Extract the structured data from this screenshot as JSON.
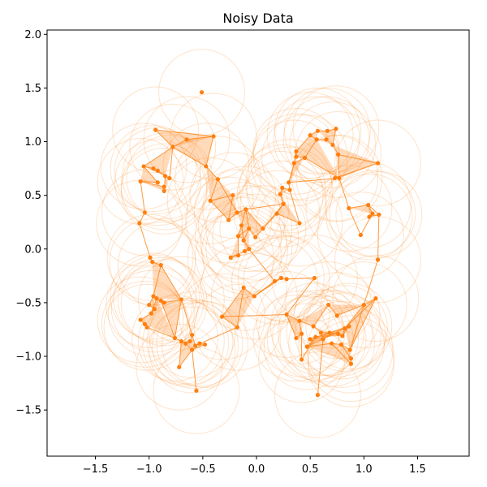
{
  "chart_data": {
    "type": "scatter",
    "title": "Noisy Data",
    "xlabel": "",
    "ylabel": "",
    "xlim": [
      -1.95,
      1.98
    ],
    "ylim": [
      -1.93,
      2.04
    ],
    "xticks": [
      -1.5,
      -1.0,
      -0.5,
      0.0,
      0.5,
      1.0,
      1.5
    ],
    "xtick_labels": [
      "−1.5",
      "−1.0",
      "−0.5",
      "0.0",
      "0.5",
      "1.0",
      "1.5"
    ],
    "yticks": [
      -1.5,
      -1.0,
      -0.5,
      0.0,
      0.5,
      1.0,
      1.5,
      2.0
    ],
    "ytick_labels": [
      "−1.5",
      "−1.0",
      "−0.5",
      "0.0",
      "0.5",
      "1.0",
      "1.5",
      "2.0"
    ],
    "grid": false,
    "point_color": "#ff7f0e",
    "circle_radius": 0.4,
    "points": [
      [
        -0.51,
        1.46
      ],
      [
        -0.94,
        1.11
      ],
      [
        -0.4,
        1.05
      ],
      [
        -0.65,
        1.02
      ],
      [
        -0.78,
        0.95
      ],
      [
        -1.05,
        0.77
      ],
      [
        -0.96,
        0.75
      ],
      [
        -0.92,
        0.73
      ],
      [
        -0.85,
        0.68
      ],
      [
        -0.81,
        0.66
      ],
      [
        -0.92,
        0.62
      ],
      [
        -1.08,
        0.63
      ],
      [
        -0.86,
        0.58
      ],
      [
        -0.86,
        0.54
      ],
      [
        -1.04,
        0.34
      ],
      [
        -1.09,
        0.24
      ],
      [
        -0.47,
        0.77
      ],
      [
        -0.36,
        0.65
      ],
      [
        -0.43,
        0.45
      ],
      [
        -0.22,
        0.5
      ],
      [
        -0.26,
        0.27
      ],
      [
        -0.18,
        0.34
      ],
      [
        -0.1,
        0.37
      ],
      [
        -0.14,
        0.22
      ],
      [
        -0.17,
        0.12
      ],
      [
        -0.07,
        0.19
      ],
      [
        -0.12,
        0.08
      ],
      [
        -0.07,
        0.0
      ],
      [
        -0.11,
        -0.02
      ],
      [
        -0.01,
        0.11
      ],
      [
        0.06,
        0.19
      ],
      [
        -0.24,
        -0.08
      ],
      [
        -0.17,
        -0.06
      ],
      [
        0.57,
        1.1
      ],
      [
        0.66,
        1.1
      ],
      [
        0.74,
        1.12
      ],
      [
        0.5,
        1.06
      ],
      [
        0.56,
        1.02
      ],
      [
        0.65,
        1.02
      ],
      [
        0.71,
        0.97
      ],
      [
        0.76,
        0.88
      ],
      [
        0.37,
        0.91
      ],
      [
        0.37,
        0.86
      ],
      [
        0.45,
        0.85
      ],
      [
        0.35,
        0.8
      ],
      [
        1.13,
        0.8
      ],
      [
        0.73,
        0.66
      ],
      [
        0.77,
        0.66
      ],
      [
        0.3,
        0.62
      ],
      [
        0.31,
        0.55
      ],
      [
        0.24,
        0.57
      ],
      [
        0.22,
        0.51
      ],
      [
        0.25,
        0.42
      ],
      [
        0.19,
        0.33
      ],
      [
        0.4,
        0.24
      ],
      [
        0.86,
        0.38
      ],
      [
        1.04,
        0.41
      ],
      [
        1.08,
        0.33
      ],
      [
        1.05,
        0.3
      ],
      [
        1.14,
        0.32
      ],
      [
        0.97,
        0.13
      ],
      [
        1.13,
        -0.1
      ],
      [
        -0.99,
        -0.08
      ],
      [
        -0.97,
        -0.12
      ],
      [
        -0.89,
        -0.15
      ],
      [
        -0.96,
        -0.44
      ],
      [
        -0.93,
        -0.46
      ],
      [
        -0.89,
        -0.48
      ],
      [
        -0.86,
        -0.5
      ],
      [
        -0.7,
        -0.47
      ],
      [
        -1.0,
        -0.52
      ],
      [
        -0.95,
        -0.56
      ],
      [
        -0.98,
        -0.6
      ],
      [
        -1.08,
        -0.66
      ],
      [
        -1.04,
        -0.7
      ],
      [
        -1.02,
        -0.73
      ],
      [
        -0.76,
        -0.83
      ],
      [
        -0.7,
        -0.86
      ],
      [
        -0.66,
        -0.88
      ],
      [
        -0.62,
        -0.86
      ],
      [
        -0.6,
        -0.8
      ],
      [
        -0.57,
        -0.9
      ],
      [
        -0.53,
        -0.88
      ],
      [
        -0.48,
        -0.89
      ],
      [
        -0.6,
        -0.94
      ],
      [
        -0.72,
        -1.1
      ],
      [
        -0.56,
        -1.32
      ],
      [
        0.23,
        -0.27
      ],
      [
        0.28,
        -0.28
      ],
      [
        0.54,
        -0.27
      ],
      [
        0.17,
        -0.3
      ],
      [
        -0.02,
        -0.44
      ],
      [
        -0.12,
        -0.36
      ],
      [
        -0.18,
        -0.73
      ],
      [
        -0.32,
        -0.63
      ],
      [
        0.28,
        -0.61
      ],
      [
        0.4,
        -0.67
      ],
      [
        0.42,
        -0.79
      ],
      [
        0.37,
        -0.83
      ],
      [
        0.53,
        -0.72
      ],
      [
        0.67,
        -0.52
      ],
      [
        0.75,
        -0.62
      ],
      [
        1.0,
        -0.52
      ],
      [
        1.11,
        -0.46
      ],
      [
        0.6,
        -0.78
      ],
      [
        0.68,
        -0.78
      ],
      [
        0.76,
        -0.79
      ],
      [
        0.8,
        -0.81
      ],
      [
        0.82,
        -0.74
      ],
      [
        0.86,
        -0.72
      ],
      [
        0.5,
        -0.84
      ],
      [
        0.55,
        -0.82
      ],
      [
        0.62,
        -0.84
      ],
      [
        0.47,
        -0.91
      ],
      [
        0.7,
        -0.88
      ],
      [
        0.79,
        -0.89
      ],
      [
        0.87,
        -0.94
      ],
      [
        0.88,
        -1.02
      ],
      [
        0.88,
        -1.07
      ],
      [
        0.42,
        -1.03
      ],
      [
        0.57,
        -1.36
      ]
    ],
    "edges": [
      [
        1,
        2
      ],
      [
        1,
        4
      ],
      [
        2,
        3
      ],
      [
        3,
        4
      ],
      [
        4,
        5
      ],
      [
        5,
        6
      ],
      [
        6,
        7
      ],
      [
        7,
        8
      ],
      [
        8,
        9
      ],
      [
        9,
        4
      ],
      [
        5,
        10
      ],
      [
        10,
        11
      ],
      [
        11,
        12
      ],
      [
        12,
        13
      ],
      [
        13,
        8
      ],
      [
        11,
        14
      ],
      [
        14,
        15
      ],
      [
        4,
        16
      ],
      [
        2,
        16
      ],
      [
        16,
        17
      ],
      [
        17,
        18
      ],
      [
        18,
        19
      ],
      [
        19,
        20
      ],
      [
        20,
        21
      ],
      [
        21,
        22
      ],
      [
        22,
        23
      ],
      [
        23,
        24
      ],
      [
        24,
        25
      ],
      [
        25,
        26
      ],
      [
        26,
        27
      ],
      [
        27,
        28
      ],
      [
        28,
        31
      ],
      [
        31,
        32
      ],
      [
        32,
        24
      ],
      [
        25,
        29
      ],
      [
        29,
        30
      ],
      [
        30,
        22
      ],
      [
        21,
        17
      ],
      [
        18,
        20
      ],
      [
        23,
        26
      ],
      [
        22,
        25
      ],
      [
        33,
        34
      ],
      [
        34,
        35
      ],
      [
        33,
        36
      ],
      [
        36,
        37
      ],
      [
        37,
        38
      ],
      [
        38,
        39
      ],
      [
        39,
        40
      ],
      [
        35,
        39
      ],
      [
        36,
        41
      ],
      [
        41,
        42
      ],
      [
        42,
        43
      ],
      [
        43,
        37
      ],
      [
        41,
        44
      ],
      [
        44,
        48
      ],
      [
        40,
        45
      ],
      [
        45,
        46
      ],
      [
        46,
        47
      ],
      [
        47,
        40
      ],
      [
        43,
        47
      ],
      [
        48,
        49
      ],
      [
        49,
        50
      ],
      [
        50,
        51
      ],
      [
        51,
        52
      ],
      [
        52,
        53
      ],
      [
        53,
        54
      ],
      [
        54,
        49
      ],
      [
        30,
        53
      ],
      [
        30,
        52
      ],
      [
        52,
        22
      ],
      [
        48,
        47
      ],
      [
        44,
        43
      ],
      [
        47,
        55
      ],
      [
        55,
        56
      ],
      [
        56,
        57
      ],
      [
        57,
        58
      ],
      [
        58,
        59
      ],
      [
        59,
        56
      ],
      [
        55,
        60
      ],
      [
        60,
        57
      ],
      [
        59,
        61
      ],
      [
        61,
        116
      ],
      [
        15,
        62
      ],
      [
        62,
        63
      ],
      [
        63,
        64
      ],
      [
        64,
        65
      ],
      [
        65,
        66
      ],
      [
        66,
        67
      ],
      [
        67,
        68
      ],
      [
        68,
        69
      ],
      [
        64,
        69
      ],
      [
        65,
        70
      ],
      [
        70,
        71
      ],
      [
        71,
        72
      ],
      [
        72,
        73
      ],
      [
        73,
        74
      ],
      [
        74,
        75
      ],
      [
        75,
        76
      ],
      [
        76,
        69
      ],
      [
        67,
        76
      ],
      [
        66,
        72
      ],
      [
        76,
        77
      ],
      [
        77,
        78
      ],
      [
        78,
        79
      ],
      [
        79,
        80
      ],
      [
        80,
        81
      ],
      [
        81,
        82
      ],
      [
        82,
        83
      ],
      [
        83,
        84
      ],
      [
        84,
        78
      ],
      [
        77,
        85
      ],
      [
        85,
        84
      ],
      [
        84,
        86
      ],
      [
        80,
        69
      ],
      [
        81,
        93
      ],
      [
        93,
        92
      ],
      [
        92,
        91
      ],
      [
        91,
        90
      ],
      [
        90,
        27
      ],
      [
        92,
        94
      ],
      [
        93,
        94
      ],
      [
        91,
        87
      ],
      [
        87,
        88
      ],
      [
        88,
        89
      ],
      [
        87,
        90
      ],
      [
        94,
        95
      ],
      [
        95,
        96
      ],
      [
        96,
        97
      ],
      [
        97,
        98
      ],
      [
        98,
        95
      ],
      [
        96,
        99
      ],
      [
        99,
        100
      ],
      [
        100,
        101
      ],
      [
        101,
        102
      ],
      [
        102,
        103
      ],
      [
        89,
        95
      ],
      [
        99,
        104
      ],
      [
        104,
        105
      ],
      [
        105,
        106
      ],
      [
        106,
        107
      ],
      [
        107,
        108
      ],
      [
        108,
        102
      ],
      [
        107,
        109
      ],
      [
        109,
        110
      ],
      [
        110,
        111
      ],
      [
        111,
        112
      ],
      [
        112,
        104
      ],
      [
        111,
        113
      ],
      [
        113,
        114
      ],
      [
        114,
        115
      ],
      [
        115,
        116
      ],
      [
        115,
        117
      ],
      [
        117,
        118
      ],
      [
        113,
        109
      ],
      [
        114,
        118
      ],
      [
        116,
        103
      ],
      [
        103,
        108
      ],
      [
        119,
        97
      ],
      [
        119,
        111
      ],
      [
        112,
        120
      ]
    ],
    "triangles": [
      [
        1,
        2,
        4
      ],
      [
        2,
        3,
        4
      ],
      [
        4,
        5,
        8
      ],
      [
        5,
        6,
        8
      ],
      [
        8,
        9,
        13
      ],
      [
        5,
        10,
        11
      ],
      [
        11,
        12,
        13
      ],
      [
        2,
        16,
        4
      ],
      [
        16,
        17,
        18
      ],
      [
        17,
        19,
        18
      ],
      [
        18,
        19,
        20
      ],
      [
        19,
        20,
        21
      ],
      [
        20,
        21,
        22
      ],
      [
        21,
        22,
        23
      ],
      [
        22,
        23,
        25
      ],
      [
        23,
        24,
        25
      ],
      [
        24,
        25,
        26
      ],
      [
        25,
        26,
        27
      ],
      [
        24,
        31,
        32
      ],
      [
        26,
        27,
        28
      ],
      [
        25,
        29,
        30
      ],
      [
        22,
        30,
        25
      ],
      [
        33,
        34,
        39
      ],
      [
        33,
        36,
        37
      ],
      [
        36,
        37,
        43
      ],
      [
        37,
        38,
        39
      ],
      [
        34,
        35,
        39
      ],
      [
        36,
        41,
        43
      ],
      [
        41,
        42,
        43
      ],
      [
        43,
        47,
        37
      ],
      [
        39,
        40,
        45
      ],
      [
        40,
        45,
        47
      ],
      [
        45,
        46,
        47
      ],
      [
        44,
        48,
        49
      ],
      [
        49,
        50,
        51
      ],
      [
        50,
        51,
        52
      ],
      [
        51,
        52,
        54
      ],
      [
        52,
        53,
        54
      ],
      [
        48,
        44,
        43
      ],
      [
        55,
        56,
        57
      ],
      [
        56,
        57,
        58
      ],
      [
        57,
        58,
        59
      ],
      [
        63,
        64,
        65
      ],
      [
        64,
        65,
        69
      ],
      [
        65,
        66,
        69
      ],
      [
        66,
        67,
        72
      ],
      [
        65,
        70,
        71
      ],
      [
        65,
        71,
        72
      ],
      [
        72,
        73,
        74
      ],
      [
        72,
        74,
        76
      ],
      [
        66,
        72,
        76
      ],
      [
        67,
        68,
        76
      ],
      [
        68,
        69,
        76
      ],
      [
        76,
        77,
        78
      ],
      [
        77,
        78,
        85
      ],
      [
        78,
        79,
        84
      ],
      [
        79,
        80,
        84
      ],
      [
        80,
        81,
        84
      ],
      [
        81,
        82,
        83
      ],
      [
        81,
        83,
        84
      ],
      [
        78,
        84,
        85
      ],
      [
        91,
        92,
        93
      ],
      [
        92,
        93,
        94
      ],
      [
        87,
        88,
        90
      ],
      [
        87,
        90,
        91
      ],
      [
        95,
        96,
        98
      ],
      [
        96,
        97,
        98
      ],
      [
        96,
        99,
        100
      ],
      [
        99,
        104,
        105
      ],
      [
        100,
        101,
        102
      ],
      [
        102,
        103,
        108
      ],
      [
        104,
        105,
        112
      ],
      [
        105,
        106,
        112
      ],
      [
        106,
        107,
        111
      ],
      [
        107,
        108,
        109
      ],
      [
        109,
        110,
        111
      ],
      [
        107,
        109,
        111
      ],
      [
        106,
        111,
        112
      ],
      [
        111,
        113,
        114
      ],
      [
        109,
        113,
        111
      ],
      [
        113,
        114,
        118
      ],
      [
        114,
        115,
        118
      ],
      [
        115,
        116,
        117
      ],
      [
        115,
        117,
        118
      ],
      [
        116,
        103,
        108
      ]
    ]
  }
}
